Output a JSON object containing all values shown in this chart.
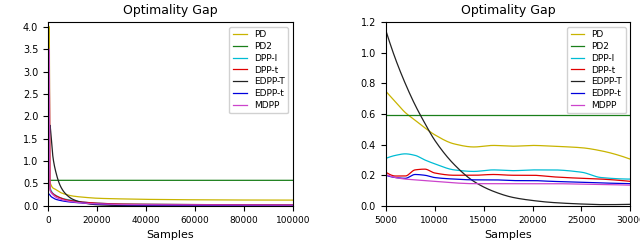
{
  "title": "Optimality Gap",
  "xlabel_left": "Samples",
  "xlabel_right": "Samples",
  "legend_labels": [
    "PD",
    "PD2",
    "DPP-l",
    "DPP-t",
    "EDPP-T",
    "EDPP-t",
    "MDPP"
  ],
  "colors": {
    "PD": "#c8b400",
    "PD2": "#1a7f1a",
    "DPP-l": "#00bcd4",
    "DPP-t": "#e00000",
    "EDPP-T": "#222222",
    "EDPP-t": "#0000dd",
    "MDPP": "#cc44cc"
  },
  "left_xlim": [
    0,
    100000
  ],
  "left_ylim": [
    0,
    4.1
  ],
  "right_xlim": [
    5000,
    30000
  ],
  "right_ylim": [
    0,
    1.2
  ]
}
